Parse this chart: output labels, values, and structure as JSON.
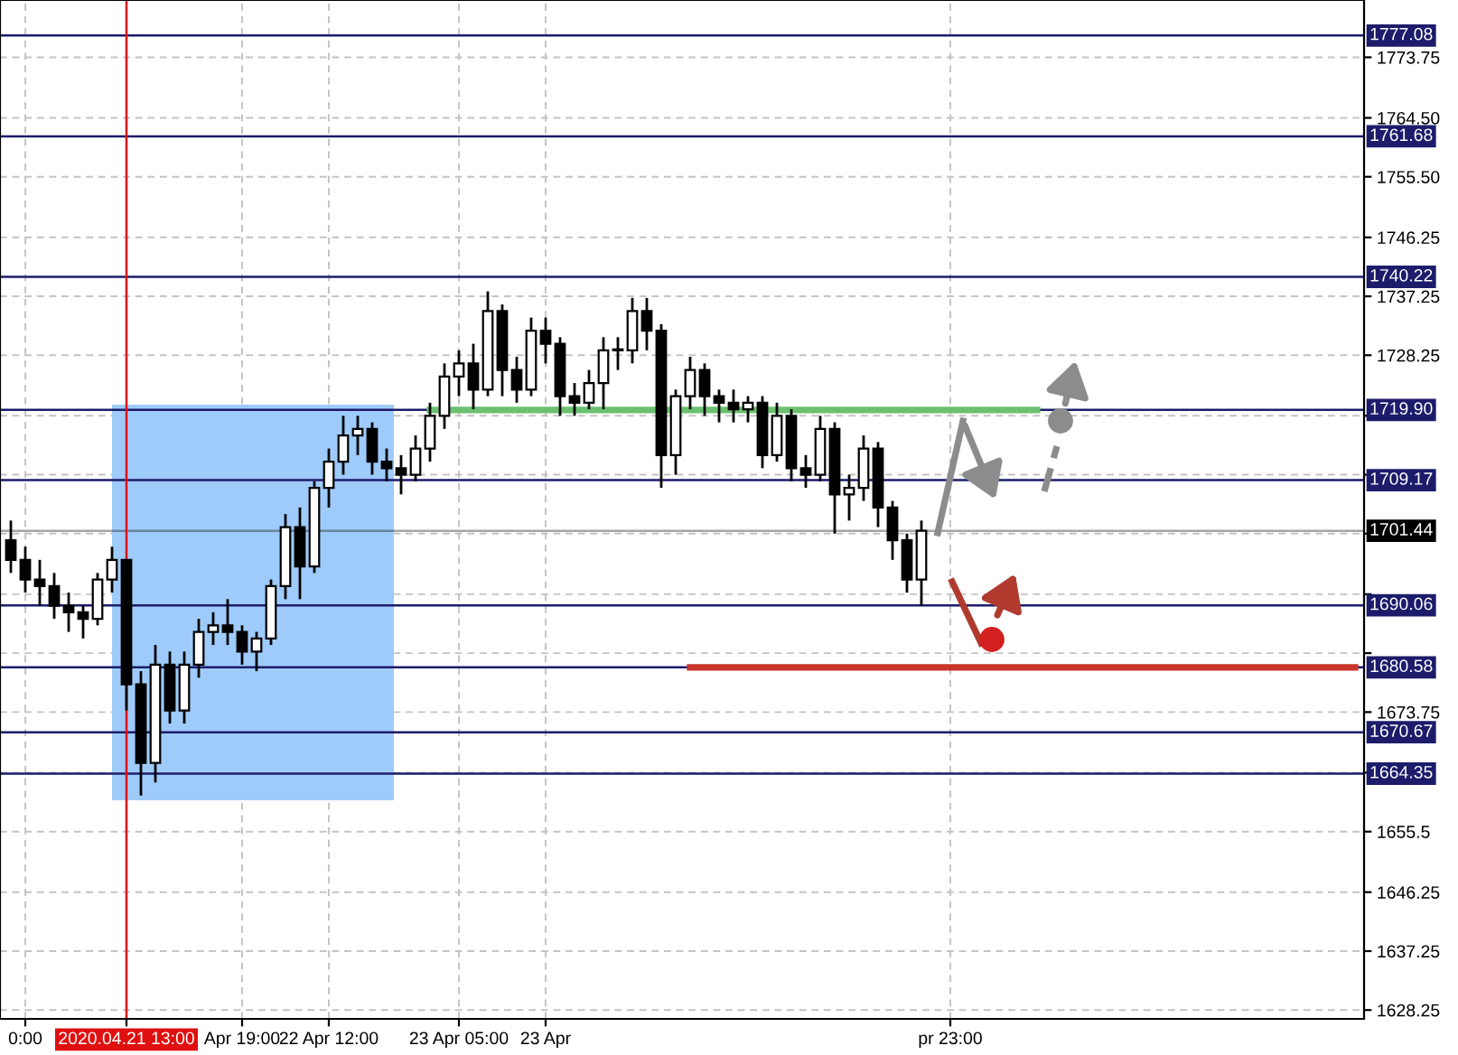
{
  "chart_data": {
    "type": "candlestick",
    "categories": [
      null,
      "0:00",
      null,
      null,
      null,
      null,
      null,
      null,
      "2020.04.21 13:00",
      null,
      null,
      null,
      null,
      null,
      null,
      null,
      "Apr 19:00",
      null,
      null,
      null,
      null,
      null,
      "22 Apr 12:00",
      null,
      null,
      null,
      null,
      null,
      null,
      null,
      null,
      "23 Apr 05:00",
      null,
      null,
      null,
      null,
      null,
      "23 Apr",
      null,
      null,
      null,
      null,
      null,
      null,
      null,
      null,
      null,
      null,
      null,
      null,
      null,
      null,
      null,
      null,
      null,
      null,
      null,
      null,
      null,
      null,
      null,
      null,
      null,
      null,
      null,
      "pr 23:00",
      null,
      null,
      null,
      null,
      null,
      null,
      null,
      null,
      null,
      null,
      null,
      null,
      null,
      null,
      null,
      null,
      null,
      null,
      null,
      null,
      null,
      null,
      null,
      null,
      null,
      null,
      null,
      null
    ],
    "ohlc": [
      [
        1700,
        1703,
        1695,
        1697
      ],
      [
        1697,
        1699,
        1692,
        1694
      ],
      [
        1694,
        1697,
        1690,
        1693
      ],
      [
        1693,
        1695,
        1688,
        1690
      ],
      [
        1690,
        1692,
        1686,
        1689
      ],
      [
        1689,
        1690,
        1685,
        1688
      ],
      [
        1688,
        1695,
        1687,
        1694
      ],
      [
        1694,
        1699,
        1692,
        1697
      ],
      [
        1697,
        1697,
        1674,
        1678
      ],
      [
        1678,
        1680,
        1661,
        1666
      ],
      [
        1666,
        1684,
        1663,
        1681
      ],
      [
        1681,
        1683,
        1672,
        1674
      ],
      [
        1674,
        1683,
        1672,
        1681
      ],
      [
        1681,
        1688,
        1679,
        1686
      ],
      [
        1686,
        1689,
        1684,
        1687
      ],
      [
        1687,
        1691,
        1684,
        1686
      ],
      [
        1686,
        1687,
        1681,
        1683
      ],
      [
        1683,
        1686,
        1680,
        1685
      ],
      [
        1685,
        1694,
        1684,
        1693
      ],
      [
        1693,
        1704,
        1691,
        1702
      ],
      [
        1702,
        1705,
        1691,
        1696
      ],
      [
        1696,
        1709,
        1695,
        1708
      ],
      [
        1708,
        1714,
        1705,
        1712
      ],
      [
        1712,
        1719,
        1710,
        1716
      ],
      [
        1716,
        1719,
        1713,
        1717
      ],
      [
        1717,
        1718,
        1710,
        1712
      ],
      [
        1712,
        1714,
        1709,
        1711
      ],
      [
        1711,
        1713,
        1707,
        1710
      ],
      [
        1710,
        1716,
        1709,
        1714
      ],
      [
        1714,
        1721,
        1712,
        1719
      ],
      [
        1719,
        1727,
        1717,
        1725
      ],
      [
        1725,
        1729,
        1722,
        1727
      ],
      [
        1727,
        1730,
        1720,
        1723
      ],
      [
        1723,
        1738,
        1722,
        1735
      ],
      [
        1735,
        1736,
        1722,
        1726
      ],
      [
        1726,
        1728,
        1721,
        1723
      ],
      [
        1723,
        1734,
        1722,
        1732
      ],
      [
        1732,
        1734,
        1727,
        1730
      ],
      [
        1730,
        1731,
        1719,
        1722
      ],
      [
        1722,
        1724,
        1719,
        1721
      ],
      [
        1721,
        1726,
        1720,
        1724
      ],
      [
        1724,
        1731,
        1720,
        1729
      ],
      [
        1729,
        1731,
        1726,
        1729
      ],
      [
        1729,
        1737,
        1727,
        1735
      ],
      [
        1735,
        1737,
        1729,
        1732
      ],
      [
        1732,
        1733,
        1708,
        1713
      ],
      [
        1713,
        1723,
        1710,
        1722
      ],
      [
        1722,
        1728,
        1720,
        1726
      ],
      [
        1726,
        1727,
        1719,
        1722
      ],
      [
        1722,
        1723,
        1718,
        1721
      ],
      [
        1721,
        1723,
        1718,
        1720
      ],
      [
        1720,
        1722,
        1718,
        1721
      ],
      [
        1721,
        1722,
        1711,
        1713
      ],
      [
        1713,
        1721,
        1712,
        1719
      ],
      [
        1719,
        1720,
        1709,
        1711
      ],
      [
        1711,
        1713,
        1708,
        1710
      ],
      [
        1710,
        1719,
        1709,
        1717
      ],
      [
        1717,
        1718,
        1701,
        1707
      ],
      [
        1707,
        1710,
        1703,
        1708
      ],
      [
        1708,
        1716,
        1706,
        1714
      ],
      [
        1714,
        1715,
        1702,
        1705
      ],
      [
        1705,
        1706,
        1697,
        1700
      ],
      [
        1700,
        1701,
        1692,
        1694
      ],
      [
        1694,
        1703,
        1690,
        1701.44
      ],
      null,
      null,
      null,
      null,
      null,
      null,
      null,
      null,
      null,
      null,
      null,
      null,
      null,
      null,
      null,
      null,
      null,
      null,
      null,
      null,
      null,
      null,
      null,
      null,
      null,
      null,
      null,
      null,
      null,
      null
    ],
    "series": [
      {
        "type": "line",
        "color": "#6cc070",
        "values": [
          null,
          null,
          null,
          null,
          null,
          null,
          null,
          null,
          null,
          null,
          null,
          null,
          null,
          null,
          null,
          null,
          null,
          null,
          null,
          null,
          null,
          null,
          null,
          null,
          null,
          null,
          null,
          null,
          null,
          1719.9,
          1719.9,
          1719.9,
          1719.9,
          1719.9,
          1719.9,
          1719.9,
          1719.9,
          1719.9,
          1719.9,
          1719.9,
          1719.9,
          1719.9,
          1719.9,
          1719.9,
          1719.9,
          1719.9,
          1719.9,
          1719.9,
          1719.9,
          1719.9,
          1719.9,
          1719.9,
          1719.9,
          1719.9,
          1719.9,
          1719.9,
          1719.9,
          1719.9,
          1719.9,
          1719.9,
          1719.9,
          1719.9,
          1719.9,
          1719.9,
          1719.9,
          1719.9,
          1719.9,
          1719.9,
          1719.9,
          1719.9,
          1719.9,
          1719.9,
          null,
          null,
          null,
          null,
          null,
          null,
          null,
          null,
          null,
          null,
          null,
          null,
          null,
          null,
          null,
          null,
          null,
          null,
          null,
          null,
          null,
          null
        ]
      },
      {
        "type": "line",
        "color": "#c8352b",
        "values": [
          null,
          null,
          null,
          null,
          null,
          null,
          null,
          null,
          null,
          null,
          null,
          null,
          null,
          null,
          null,
          null,
          null,
          null,
          null,
          null,
          null,
          null,
          null,
          null,
          null,
          null,
          null,
          null,
          null,
          null,
          null,
          null,
          null,
          null,
          null,
          null,
          null,
          null,
          null,
          null,
          null,
          null,
          null,
          null,
          null,
          null,
          null,
          1680.58,
          1680.58,
          1680.58,
          1680.58,
          1680.58,
          1680.58,
          1680.58,
          1680.58,
          1680.58,
          1680.58,
          1680.58,
          1680.58,
          1680.58,
          1680.58,
          1680.58,
          1680.58,
          1680.58,
          1680.58,
          1680.58,
          1680.58,
          1680.58,
          1680.58,
          1680.58,
          1680.58,
          1680.58,
          1680.58,
          1680.58,
          1680.58,
          1680.58,
          1680.58,
          1680.58,
          1680.58,
          1680.58,
          1680.58,
          1680.58,
          1680.58,
          1680.58,
          1680.58,
          1680.58,
          1680.58,
          1680.58,
          1680.58,
          1680.58,
          1680.58,
          1680.58,
          1680.58,
          1680.58
        ]
      }
    ],
    "ylim": [
      1626.9,
      1782.5
    ],
    "yticks": [
      1628.25,
      1637.25,
      1646.25,
      1655.5,
      {
        "value": 1664.5,
        "label": null
      },
      1673.75,
      {
        "value": 1682.75,
        "label": null
      },
      {
        "value": 1691.75,
        "label": null
      },
      {
        "value": 1701.0,
        "label": null
      },
      {
        "value": 1710.0,
        "label": null
      },
      {
        "value": 1719.0,
        "label": null
      },
      1728.25,
      1737.25,
      1746.25,
      {
        "value": 1755.5,
        "label": "1755.50"
      },
      {
        "value": 1764.5,
        "label": "1764.50"
      },
      1773.75
    ],
    "grid": true,
    "ref_lines": [
      {
        "axis": "y",
        "value": 1777.08,
        "label": "1777.08",
        "color": "#1c1c6b"
      },
      {
        "axis": "y",
        "value": 1761.68,
        "label": "1761.68",
        "color": "#1c1c6b"
      },
      {
        "axis": "y",
        "value": 1740.22,
        "label": "1740.22",
        "color": "#1c1c6b"
      },
      {
        "axis": "y",
        "value": 1719.9,
        "label": "1719.90",
        "color": "#1c1c6b"
      },
      {
        "axis": "y",
        "value": 1709.17,
        "label": "1709.17",
        "color": "#1c1c6b"
      },
      {
        "axis": "y",
        "value": 1701.44,
        "label": "1701.44",
        "color": "#000000"
      },
      {
        "axis": "y",
        "value": 1690.06,
        "label": "1690.06",
        "color": "#1c1c6b"
      },
      {
        "axis": "y",
        "value": 1680.58,
        "label": "1680.58",
        "color": "#1c1c6b"
      },
      {
        "axis": "y",
        "value": 1670.67,
        "label": "1670.67",
        "color": "#1c1c6b"
      },
      {
        "axis": "y",
        "value": 1664.35,
        "label": "1664.35",
        "color": "#1c1c6b"
      },
      {
        "axis": "x",
        "value": "2020.04.21 13:00",
        "color": "#e01010"
      }
    ]
  }
}
